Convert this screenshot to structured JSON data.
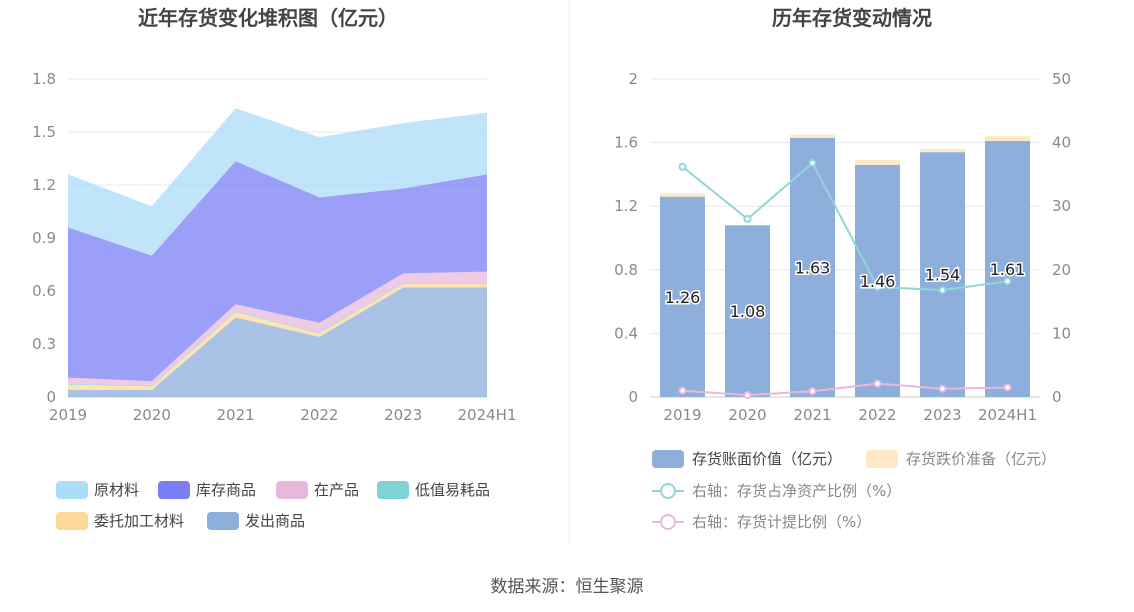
{
  "footer": {
    "source": "数据来源：恒生聚源"
  },
  "colors": {
    "raw_material": "#abdcf8",
    "inventory_goods": "#7b7ff5",
    "wip": "#e8b8dc",
    "low_value": "#7fd2d5",
    "consigned": "#ffd99a",
    "shipped": "#8eaedc",
    "book_value": "#8eaedc",
    "provision": "#ffe8c4",
    "ratio_line": "#8fd6d9",
    "provision_ratio_line": "#e8b8dc",
    "grid": "#e6e8ef",
    "axis": "#cccccc"
  },
  "chart_data": [
    {
      "type": "area",
      "title": "近年存货变化堆积图（亿元）",
      "categories": [
        "2019",
        "2020",
        "2021",
        "2022",
        "2023",
        "2024H1"
      ],
      "y_ticks": [
        "0",
        "0.3",
        "0.6",
        "0.9",
        "1.2",
        "1.5",
        "1.8"
      ],
      "ylim": [
        0,
        1.8
      ],
      "stacked": true,
      "grid": true,
      "legend_position": "bottom",
      "series": [
        {
          "name": "发出商品",
          "color_key": "shipped",
          "values": [
            0.04,
            0.04,
            0.45,
            0.34,
            0.62,
            0.62
          ]
        },
        {
          "name": "委托加工材料",
          "color_key": "consigned",
          "values": [
            0.03,
            0.02,
            0.03,
            0.02,
            0.02,
            0.02
          ]
        },
        {
          "name": "低值易耗品",
          "color_key": "low_value",
          "values": [
            0.005,
            0.005,
            0.005,
            0.005,
            0.005,
            0.005
          ]
        },
        {
          "name": "在产品",
          "color_key": "wip",
          "values": [
            0.035,
            0.025,
            0.04,
            0.055,
            0.055,
            0.065
          ]
        },
        {
          "name": "库存商品",
          "color_key": "inventory_goods",
          "values": [
            0.85,
            0.71,
            0.81,
            0.71,
            0.48,
            0.55
          ]
        },
        {
          "name": "原材料",
          "color_key": "raw_material",
          "values": [
            0.3,
            0.28,
            0.3,
            0.34,
            0.37,
            0.35
          ]
        }
      ],
      "legend": [
        [
          "原材料",
          "库存商品",
          "在产品",
          "低值易耗品"
        ],
        [
          "委托加工材料",
          "发出商品"
        ]
      ]
    },
    {
      "type": "bar",
      "title": "历年存货变动情况",
      "categories": [
        "2019",
        "2020",
        "2021",
        "2022",
        "2023",
        "2024H1"
      ],
      "y_ticks_left": [
        "0",
        "0.4",
        "0.8",
        "1.2",
        "1.6",
        "2"
      ],
      "ylim_left": [
        0,
        2
      ],
      "y_ticks_right": [
        "0",
        "10",
        "20",
        "30",
        "40",
        "50"
      ],
      "ylim_right": [
        0,
        50
      ],
      "grid": true,
      "legend_position": "bottom",
      "bars": [
        {
          "name": "存货账面价值（亿元）",
          "color_key": "book_value",
          "values": [
            1.26,
            1.08,
            1.63,
            1.46,
            1.54,
            1.61
          ],
          "labels": [
            "1.26",
            "1.08",
            "1.63",
            "1.46",
            "1.54",
            "1.61"
          ]
        },
        {
          "name": "存货跌价准备（亿元）",
          "color_key": "provision",
          "values": [
            0.02,
            0.0,
            0.02,
            0.03,
            0.02,
            0.03
          ]
        }
      ],
      "lines": [
        {
          "name": "右轴：存货占净资产比例（%）",
          "color_key": "ratio_line",
          "values": [
            36.2,
            28.0,
            36.8,
            17.3,
            16.8,
            18.2
          ]
        },
        {
          "name": "右轴：存货计提比例（%）",
          "color_key": "provision_ratio_line",
          "values": [
            1.0,
            0.3,
            0.9,
            2.1,
            1.3,
            1.5
          ]
        }
      ]
    }
  ]
}
